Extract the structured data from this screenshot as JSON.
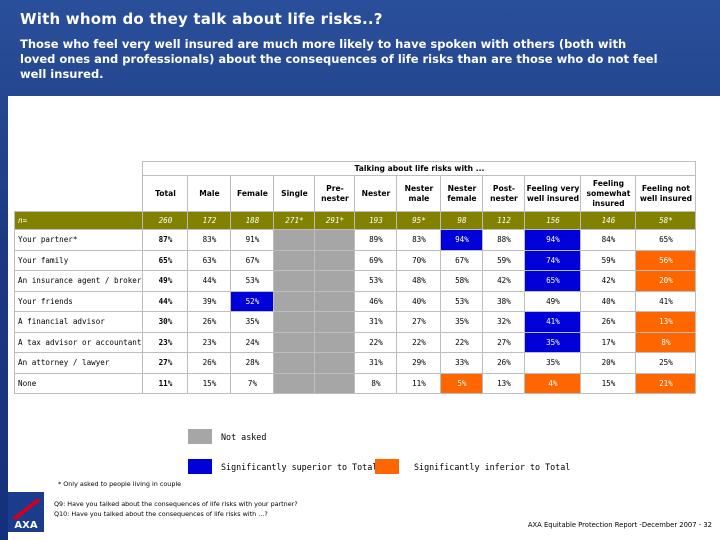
{
  "title": "With whom do they talk about life risks..?",
  "subtitle": "Those who feel very well insured are much more likely to have spoken with others (both with loved ones and professionals) about the consequences of life risks than are those who do not feel well insured.",
  "colors": {
    "superior": "#0000d8",
    "inferior": "#ff6600",
    "not_asked": "#a6a6a6",
    "n_row": "#828200"
  },
  "table": {
    "group_header": "Talking about life risks with ...",
    "columns": [
      "Total",
      "Male",
      "Female",
      "Single",
      "Pre-nester",
      "Nester",
      "Nester male",
      "Nester female",
      "Post-nester",
      "Feeling very well insured",
      "Feeling somewhat insured",
      "Feeling not well insured"
    ],
    "n_row": {
      "label": "n=",
      "values": [
        "260",
        "172",
        "188",
        "271*",
        "291*",
        "193",
        "95*",
        "98",
        "112",
        "156",
        "146",
        "58*"
      ]
    },
    "rows": [
      {
        "label": "Your partner*",
        "values": [
          "87%",
          "83%",
          "91%",
          "",
          "",
          "89%",
          "83%",
          "94%",
          "88%",
          "94%",
          "84%",
          "65%"
        ],
        "styles": [
          "bold",
          "",
          "",
          "grey",
          "grey",
          "",
          "",
          "sup",
          "",
          "sup",
          "",
          ""
        ]
      },
      {
        "label": "Your family",
        "values": [
          "65%",
          "63%",
          "67%",
          "",
          "",
          "69%",
          "70%",
          "67%",
          "59%",
          "74%",
          "59%",
          "56%"
        ],
        "styles": [
          "bold",
          "",
          "",
          "grey",
          "grey",
          "",
          "",
          "",
          "",
          "sup",
          "",
          "inf"
        ]
      },
      {
        "label": "An insurance agent / broker",
        "values": [
          "49%",
          "44%",
          "53%",
          "",
          "",
          "53%",
          "48%",
          "58%",
          "42%",
          "65%",
          "42%",
          "20%"
        ],
        "styles": [
          "bold",
          "",
          "",
          "grey",
          "grey",
          "",
          "",
          "",
          "",
          "sup",
          "",
          "inf"
        ]
      },
      {
        "label": "Your friends",
        "values": [
          "44%",
          "39%",
          "52%",
          "",
          "",
          "46%",
          "40%",
          "53%",
          "38%",
          "49%",
          "40%",
          "41%"
        ],
        "styles": [
          "bold",
          "",
          "sup",
          "grey",
          "grey",
          "",
          "",
          "",
          "",
          "",
          "",
          ""
        ]
      },
      {
        "label": "A financial advisor",
        "values": [
          "30%",
          "26%",
          "35%",
          "",
          "",
          "31%",
          "27%",
          "35%",
          "32%",
          "41%",
          "26%",
          "13%"
        ],
        "styles": [
          "bold",
          "",
          "",
          "grey",
          "grey",
          "",
          "",
          "",
          "",
          "sup",
          "",
          "inf"
        ]
      },
      {
        "label": "A tax advisor or accountant",
        "values": [
          "23%",
          "23%",
          "24%",
          "",
          "",
          "22%",
          "22%",
          "22%",
          "27%",
          "35%",
          "17%",
          "8%"
        ],
        "styles": [
          "bold",
          "",
          "",
          "grey",
          "grey",
          "",
          "",
          "",
          "",
          "sup",
          "",
          "inf"
        ]
      },
      {
        "label": "An attorney / lawyer",
        "values": [
          "27%",
          "26%",
          "28%",
          "",
          "",
          "31%",
          "29%",
          "33%",
          "26%",
          "35%",
          "20%",
          "25%"
        ],
        "styles": [
          "bold",
          "",
          "",
          "grey",
          "grey",
          "",
          "",
          "",
          "",
          "",
          "",
          ""
        ]
      },
      {
        "label": "None",
        "values": [
          "11%",
          "15%",
          "7%",
          "",
          "",
          "8%",
          "11%",
          "5%",
          "13%",
          "4%",
          "15%",
          "21%"
        ],
        "styles": [
          "bold",
          "",
          "",
          "grey",
          "grey",
          "",
          "",
          "inf",
          "",
          "inf",
          "",
          "inf"
        ]
      }
    ]
  },
  "legend": {
    "not_asked": "Not asked",
    "superior": "Significantly superior to Total",
    "inferior": "Significantly inferior to Total"
  },
  "notes": {
    "footnote": "* Only asked to people living in couple",
    "q9": "Q9: Have you talked about the consequences of life risks with your partner?",
    "q10": "Q10: Have you talked about the consequences of life risks with ...?"
  },
  "footer": "AXA Equitable Protection Report -December 2007 - 32",
  "logo_text": "AXA"
}
